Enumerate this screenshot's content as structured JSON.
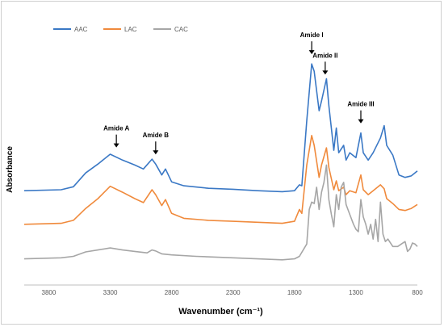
{
  "chart_data": {
    "type": "line",
    "xlabel": "Wavenumber (cm⁻¹)",
    "ylabel": "Absorbance",
    "x_reversed": true,
    "xlim": [
      4000,
      800
    ],
    "x_ticks": [
      3800,
      3300,
      2800,
      2300,
      1800,
      1300,
      800
    ],
    "x_tick_labels": [
      "3800",
      "3300",
      "2800",
      "2300",
      "1800",
      "1300",
      "800"
    ],
    "y_ticks_shown": false,
    "grid": false,
    "legend_position": "top-left",
    "series": [
      {
        "name": "AAC",
        "color": "#3a78c5",
        "points": [
          [
            4000,
            0.78
          ],
          [
            3700,
            0.8
          ],
          [
            3600,
            0.86
          ],
          [
            3500,
            1.14
          ],
          [
            3400,
            1.32
          ],
          [
            3300,
            1.52
          ],
          [
            3200,
            1.4
          ],
          [
            3100,
            1.3
          ],
          [
            3030,
            1.22
          ],
          [
            2960,
            1.42
          ],
          [
            2930,
            1.32
          ],
          [
            2880,
            1.1
          ],
          [
            2850,
            1.22
          ],
          [
            2800,
            0.96
          ],
          [
            2700,
            0.88
          ],
          [
            2500,
            0.83
          ],
          [
            2300,
            0.81
          ],
          [
            2100,
            0.78
          ],
          [
            1900,
            0.76
          ],
          [
            1800,
            0.78
          ],
          [
            1760,
            0.9
          ],
          [
            1740,
            0.88
          ],
          [
            1700,
            2.2
          ],
          [
            1660,
            3.35
          ],
          [
            1640,
            3.2
          ],
          [
            1600,
            2.4
          ],
          [
            1580,
            2.6
          ],
          [
            1540,
            3.05
          ],
          [
            1520,
            2.5
          ],
          [
            1480,
            1.6
          ],
          [
            1460,
            2.05
          ],
          [
            1440,
            1.55
          ],
          [
            1400,
            1.7
          ],
          [
            1380,
            1.4
          ],
          [
            1350,
            1.55
          ],
          [
            1300,
            1.45
          ],
          [
            1260,
            1.95
          ],
          [
            1240,
            1.55
          ],
          [
            1200,
            1.4
          ],
          [
            1160,
            1.55
          ],
          [
            1100,
            1.85
          ],
          [
            1070,
            2.1
          ],
          [
            1050,
            1.7
          ],
          [
            1000,
            1.5
          ],
          [
            950,
            1.1
          ],
          [
            900,
            1.05
          ],
          [
            850,
            1.08
          ],
          [
            800,
            1.18
          ]
        ]
      },
      {
        "name": "LAC",
        "color": "#f08a3c",
        "points": [
          [
            4000,
            0.1
          ],
          [
            3700,
            0.12
          ],
          [
            3600,
            0.18
          ],
          [
            3500,
            0.42
          ],
          [
            3400,
            0.62
          ],
          [
            3300,
            0.87
          ],
          [
            3200,
            0.75
          ],
          [
            3100,
            0.62
          ],
          [
            3030,
            0.54
          ],
          [
            2960,
            0.8
          ],
          [
            2930,
            0.7
          ],
          [
            2880,
            0.48
          ],
          [
            2850,
            0.6
          ],
          [
            2800,
            0.32
          ],
          [
            2700,
            0.22
          ],
          [
            2500,
            0.18
          ],
          [
            2300,
            0.16
          ],
          [
            2100,
            0.14
          ],
          [
            1900,
            0.12
          ],
          [
            1800,
            0.16
          ],
          [
            1760,
            0.4
          ],
          [
            1740,
            0.32
          ],
          [
            1700,
            1.3
          ],
          [
            1660,
            1.9
          ],
          [
            1640,
            1.7
          ],
          [
            1600,
            1.05
          ],
          [
            1580,
            1.3
          ],
          [
            1540,
            1.65
          ],
          [
            1520,
            1.25
          ],
          [
            1480,
            0.8
          ],
          [
            1460,
            0.98
          ],
          [
            1440,
            0.78
          ],
          [
            1400,
            0.85
          ],
          [
            1380,
            0.7
          ],
          [
            1350,
            0.78
          ],
          [
            1300,
            0.74
          ],
          [
            1260,
            1.1
          ],
          [
            1240,
            0.8
          ],
          [
            1200,
            0.7
          ],
          [
            1160,
            0.78
          ],
          [
            1100,
            0.9
          ],
          [
            1070,
            0.82
          ],
          [
            1050,
            0.62
          ],
          [
            1000,
            0.52
          ],
          [
            950,
            0.4
          ],
          [
            900,
            0.38
          ],
          [
            850,
            0.42
          ],
          [
            800,
            0.5
          ]
        ]
      },
      {
        "name": "CAC",
        "color": "#a6a6a6",
        "points": [
          [
            4000,
            -0.6
          ],
          [
            3700,
            -0.58
          ],
          [
            3600,
            -0.55
          ],
          [
            3500,
            -0.46
          ],
          [
            3400,
            -0.42
          ],
          [
            3300,
            -0.38
          ],
          [
            3200,
            -0.42
          ],
          [
            3100,
            -0.45
          ],
          [
            3000,
            -0.48
          ],
          [
            2960,
            -0.42
          ],
          [
            2930,
            -0.44
          ],
          [
            2880,
            -0.5
          ],
          [
            2800,
            -0.52
          ],
          [
            2600,
            -0.55
          ],
          [
            2300,
            -0.58
          ],
          [
            2100,
            -0.6
          ],
          [
            1900,
            -0.62
          ],
          [
            1800,
            -0.6
          ],
          [
            1760,
            -0.55
          ],
          [
            1700,
            -0.3
          ],
          [
            1680,
            0.4
          ],
          [
            1660,
            0.55
          ],
          [
            1640,
            0.52
          ],
          [
            1620,
            0.85
          ],
          [
            1600,
            0.4
          ],
          [
            1580,
            0.75
          ],
          [
            1560,
            0.95
          ],
          [
            1540,
            1.3
          ],
          [
            1520,
            0.6
          ],
          [
            1500,
            0.3
          ],
          [
            1480,
            0.05
          ],
          [
            1460,
            0.7
          ],
          [
            1440,
            0.4
          ],
          [
            1420,
            0.85
          ],
          [
            1400,
            0.95
          ],
          [
            1380,
            0.5
          ],
          [
            1350,
            0.3
          ],
          [
            1320,
            0.1
          ],
          [
            1300,
            0.0
          ],
          [
            1280,
            -0.05
          ],
          [
            1260,
            0.6
          ],
          [
            1240,
            0.25
          ],
          [
            1220,
            0.1
          ],
          [
            1200,
            -0.1
          ],
          [
            1180,
            0.1
          ],
          [
            1160,
            -0.2
          ],
          [
            1140,
            0.2
          ],
          [
            1120,
            -0.25
          ],
          [
            1100,
            0.55
          ],
          [
            1080,
            -0.1
          ],
          [
            1060,
            -0.25
          ],
          [
            1040,
            -0.2
          ],
          [
            1000,
            -0.35
          ],
          [
            960,
            -0.35
          ],
          [
            930,
            -0.3
          ],
          [
            900,
            -0.25
          ],
          [
            880,
            -0.45
          ],
          [
            860,
            -0.4
          ],
          [
            840,
            -0.28
          ],
          [
            820,
            -0.3
          ],
          [
            800,
            -0.35
          ]
        ]
      }
    ],
    "annotations": [
      {
        "label": "Amide A",
        "x": 3250
      },
      {
        "label": "Amide B",
        "x": 2930
      },
      {
        "label": "Amide I",
        "x": 1660
      },
      {
        "label": "Amide II",
        "x": 1550
      },
      {
        "label": "Amide III",
        "x": 1260
      }
    ]
  }
}
